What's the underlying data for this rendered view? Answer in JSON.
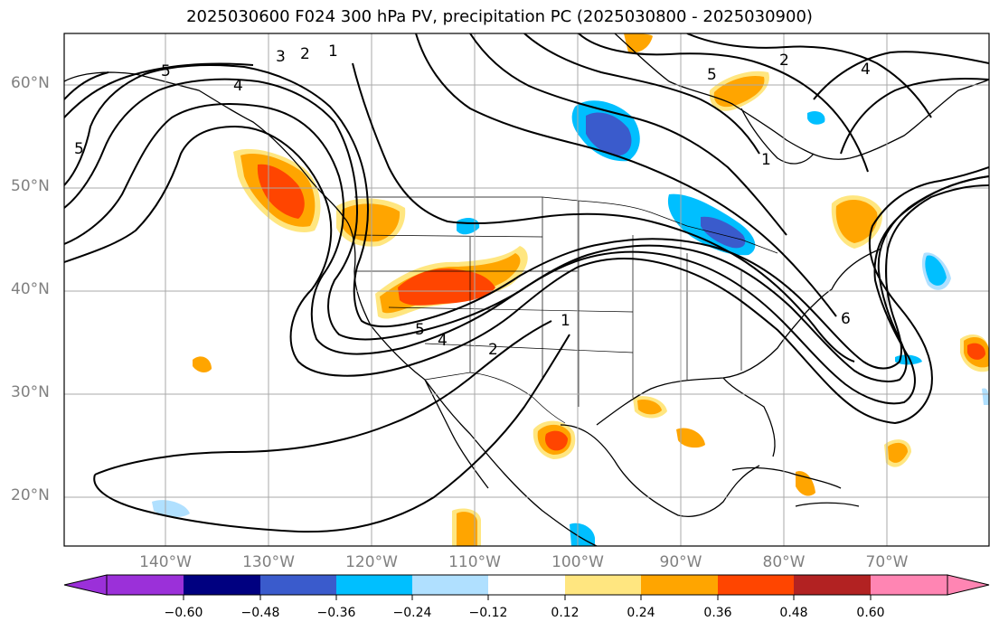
{
  "title": "2025030600 F024 300 hPa PV, precipitation PC (2025030800 - 2025030900)",
  "lat_labels": [
    "60°N",
    "50°N",
    "40°N",
    "30°N",
    "20°N"
  ],
  "lon_labels": [
    "140°W",
    "130°W",
    "120°W",
    "110°W",
    "100°W",
    "90°W",
    "80°W",
    "70°W"
  ],
  "contour_labels": [
    "5",
    "4",
    "3",
    "2",
    "1",
    "5",
    "1",
    "2",
    "4",
    "5",
    "4",
    "2",
    "1",
    "6",
    "5"
  ],
  "colorbar": {
    "labels": [
      "−0.60",
      "−0.48",
      "−0.36",
      "−0.24",
      "−0.12",
      "0.12",
      "0.24",
      "0.36",
      "0.48",
      "0.60"
    ],
    "colors": [
      "#9b30d9",
      "#000080",
      "#3a5bcc",
      "#00bfff",
      "#b0e0ff",
      "#ffffff",
      "#ffe680",
      "#ffa500",
      "#ff4500",
      "#b22222",
      "#ff85b3"
    ]
  },
  "colors": {
    "frame": "#000000",
    "grid": "#a9a9a9",
    "axis_label": "#808080"
  }
}
